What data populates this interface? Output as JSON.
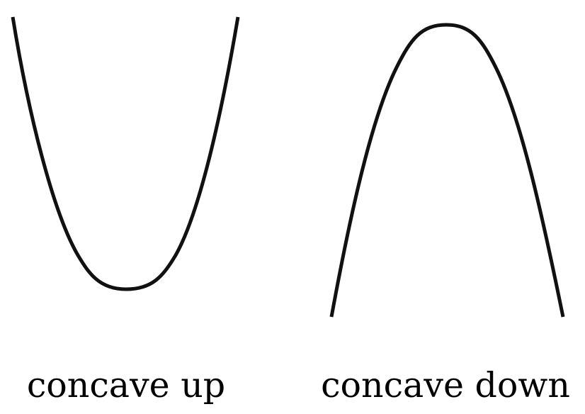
{
  "panels": [
    {
      "label": "concave up",
      "shape": "concave-up"
    },
    {
      "label": "concave down",
      "shape": "concave-down"
    }
  ],
  "colors": {
    "stroke": "#111111",
    "background": "#ffffff"
  }
}
